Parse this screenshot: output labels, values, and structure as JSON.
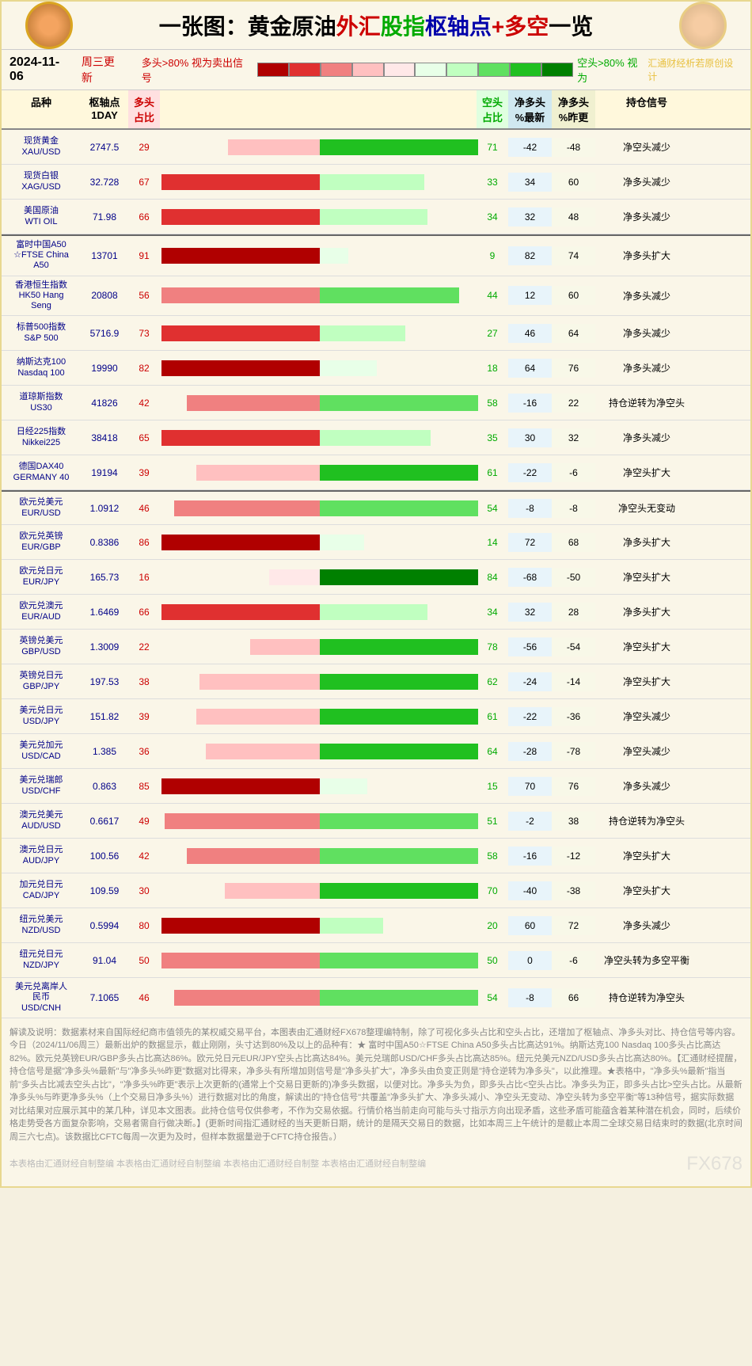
{
  "title_parts": [
    "一张图：",
    "黄金原油",
    "外汇",
    "股指",
    "枢轴点",
    "+多空",
    "一览"
  ],
  "date": "2024-11-06",
  "update_text": "周三更新",
  "legend_sell": "多头>80% 视为卖出信号",
  "legend_buy": "空头>80% 视为",
  "watermark": "汇通财经析若原创设计",
  "gradient_colors": [
    "#b00000",
    "#e03030",
    "#f08080",
    "#ffc0c0",
    "#ffe8e8",
    "#e8ffe8",
    "#c0ffc0",
    "#60e060",
    "#20c020",
    "#008000"
  ],
  "headers": {
    "name": "品种",
    "pivot": "枢轴点\n1DAY",
    "long": "多头\n占比",
    "short": "空头\n占比",
    "net1": "净多头\n%最新",
    "net2": "净多头\n%昨更",
    "signal": "持仓信号"
  },
  "long_color_map": {
    "very_high": "#b00000",
    "high": "#e03030",
    "mid": "#f08080",
    "low": "#ffc0c0",
    "very_low": "#ffe8e8"
  },
  "short_color_map": {
    "very_high": "#008000",
    "high": "#20c020",
    "mid": "#60e060",
    "low": "#c0ffc0",
    "very_low": "#e8ffe8"
  },
  "sections": [
    {
      "rows": [
        {
          "name": "现货黄金\nXAU/USD",
          "pivot": "2747.5",
          "long": 29,
          "short": 71,
          "net1": -42,
          "net2": -48,
          "signal": "净空头减少"
        },
        {
          "name": "现货白银\nXAG/USD",
          "pivot": "32.728",
          "long": 67,
          "short": 33,
          "net1": 34,
          "net2": 60,
          "signal": "净多头减少"
        },
        {
          "name": "美国原油\nWTI OIL",
          "pivot": "71.98",
          "long": 66,
          "short": 34,
          "net1": 32,
          "net2": 48,
          "signal": "净多头减少"
        }
      ]
    },
    {
      "rows": [
        {
          "name": "富时中国A50\n☆FTSE China\nA50",
          "pivot": "13701",
          "long": 91,
          "short": 9,
          "net1": 82,
          "net2": 74,
          "signal": "净多头扩大"
        },
        {
          "name": "香港恒生指数\nHK50 Hang\nSeng",
          "pivot": "20808",
          "long": 56,
          "short": 44,
          "net1": 12,
          "net2": 60,
          "signal": "净多头减少"
        },
        {
          "name": "标普500指数\nS&P 500",
          "pivot": "5716.9",
          "long": 73,
          "short": 27,
          "net1": 46,
          "net2": 64,
          "signal": "净多头减少"
        },
        {
          "name": "纳斯达克100\nNasdaq 100",
          "pivot": "19990",
          "long": 82,
          "short": 18,
          "net1": 64,
          "net2": 76,
          "signal": "净多头减少"
        },
        {
          "name": "道琼斯指数\nUS30",
          "pivot": "41826",
          "long": 42,
          "short": 58,
          "net1": -16,
          "net2": 22,
          "signal": "持仓逆转为净空头"
        },
        {
          "name": "日经225指数\nNikkei225",
          "pivot": "38418",
          "long": 65,
          "short": 35,
          "net1": 30,
          "net2": 32,
          "signal": "净多头减少"
        },
        {
          "name": "德国DAX40\nGERMANY 40",
          "pivot": "19194",
          "long": 39,
          "short": 61,
          "net1": -22,
          "net2": -6,
          "signal": "净空头扩大"
        }
      ]
    },
    {
      "rows": [
        {
          "name": "欧元兑美元\nEUR/USD",
          "pivot": "1.0912",
          "long": 46,
          "short": 54,
          "net1": -8,
          "net2": -8,
          "signal": "净空头无变动"
        },
        {
          "name": "欧元兑英镑\nEUR/GBP",
          "pivot": "0.8386",
          "long": 86,
          "short": 14,
          "net1": 72,
          "net2": 68,
          "signal": "净多头扩大"
        },
        {
          "name": "欧元兑日元\nEUR/JPY",
          "pivot": "165.73",
          "long": 16,
          "short": 84,
          "net1": -68,
          "net2": -50,
          "signal": "净空头扩大"
        },
        {
          "name": "欧元兑澳元\nEUR/AUD",
          "pivot": "1.6469",
          "long": 66,
          "short": 34,
          "net1": 32,
          "net2": 28,
          "signal": "净多头扩大"
        },
        {
          "name": "英镑兑美元\nGBP/USD",
          "pivot": "1.3009",
          "long": 22,
          "short": 78,
          "net1": -56,
          "net2": -54,
          "signal": "净空头扩大"
        },
        {
          "name": "英镑兑日元\nGBP/JPY",
          "pivot": "197.53",
          "long": 38,
          "short": 62,
          "net1": -24,
          "net2": -14,
          "signal": "净空头扩大"
        },
        {
          "name": "美元兑日元\nUSD/JPY",
          "pivot": "151.82",
          "long": 39,
          "short": 61,
          "net1": -22,
          "net2": -36,
          "signal": "净空头减少"
        },
        {
          "name": "美元兑加元\nUSD/CAD",
          "pivot": "1.385",
          "long": 36,
          "short": 64,
          "net1": -28,
          "net2": -78,
          "signal": "净空头减少"
        },
        {
          "name": "美元兑瑞郎\nUSD/CHF",
          "pivot": "0.863",
          "long": 85,
          "short": 15,
          "net1": 70,
          "net2": 76,
          "signal": "净多头减少"
        },
        {
          "name": "澳元兑美元\nAUD/USD",
          "pivot": "0.6617",
          "long": 49,
          "short": 51,
          "net1": -2,
          "net2": 38,
          "signal": "持仓逆转为净空头"
        },
        {
          "name": "澳元兑日元\nAUD/JPY",
          "pivot": "100.56",
          "long": 42,
          "short": 58,
          "net1": -16,
          "net2": -12,
          "signal": "净空头扩大"
        },
        {
          "name": "加元兑日元\nCAD/JPY",
          "pivot": "109.59",
          "long": 30,
          "short": 70,
          "net1": -40,
          "net2": -38,
          "signal": "净空头扩大"
        },
        {
          "name": "纽元兑美元\nNZD/USD",
          "pivot": "0.5994",
          "long": 80,
          "short": 20,
          "net1": 60,
          "net2": 72,
          "signal": "净多头减少"
        },
        {
          "name": "纽元兑日元\nNZD/JPY",
          "pivot": "91.04",
          "long": 50,
          "short": 50,
          "net1": 0,
          "net2": -6,
          "signal": "净空头转为多空平衡"
        },
        {
          "name": "美元兑离岸人\n民币\nUSD/CNH",
          "pivot": "7.1065",
          "long": 46,
          "short": 54,
          "net1": -8,
          "net2": 66,
          "signal": "持仓逆转为净空头"
        }
      ]
    }
  ],
  "footer_text": "解读及说明：数据素材来自国际经纪商市值领先的某权威交易平台，本图表由汇通财经FX678整理编特制，除了可视化多头占比和空头占比，还增加了枢轴点、净多头对比、持仓信号等内容。今日（2024/11/06周三）最新出炉的数据显示，截止刚刚，头寸达到80%及以上的品种有：★ 富时中国A50☆FTSE China A50多头占比高达91%。纳斯达克100 Nasdaq 100多头占比高达82%。欧元兑英镑EUR/GBP多头占比高达86%。欧元兑日元EUR/JPY空头占比高达84%。美元兑瑞郎USD/CHF多头占比高达85%。纽元兑美元NZD/USD多头占比高达80%。【汇通财经提醒，持仓信号是据\"净多头%最新\"与\"净多头%昨更\"数据对比得来，净多头有所增加则信号是\"净多头扩大\"，净多头由负变正则是\"持仓逆转为净多头\"，以此推理。★表格中，\"净多头%最新\"指当前\"多头占比减去空头占比\"，\"净多头%昨更\"表示上次更新的(通常上个交易日更新的)净多头数据，以便对比。净多头为负，即多头占比<空头占比。净多头为正，即多头占比>空头占比。从最新净多头%与昨更净多头%（上个交易日净多头%）进行数据对比的角度，解读出的\"持仓信号\"共覆盖\"净多头扩大、净多头减小、净空头无变动、净空头转为多空平衡\"等13种信号，据实际数据对比结果对应展示其中的某几种，详见本文图表。此持仓信号仅供参考，不作为交易依据。行情价格当前走向可能与头寸指示方向出现矛盾，这些矛盾可能蕴含着某种潜在机会，同时，后续价格走势受各方面复杂影响，交易者需自行做决断。】(更新时间指汇通财经的当天更新日期，统计的是隔天交易日的数据，比如本周三上午统计的是截止本周二全球交易日结束时的数据(北京时间周三六七点)。该数据比CFTC每周一次更为及时，但样本数据量逊于CFTC持仓报告。）",
  "footer_credits": "本表格由汇通财经自制整编  本表格由汇通财经自制整编  本表格由汇通财经自制整  本表格由汇通财经自制整编",
  "footer_brand": "FX678"
}
